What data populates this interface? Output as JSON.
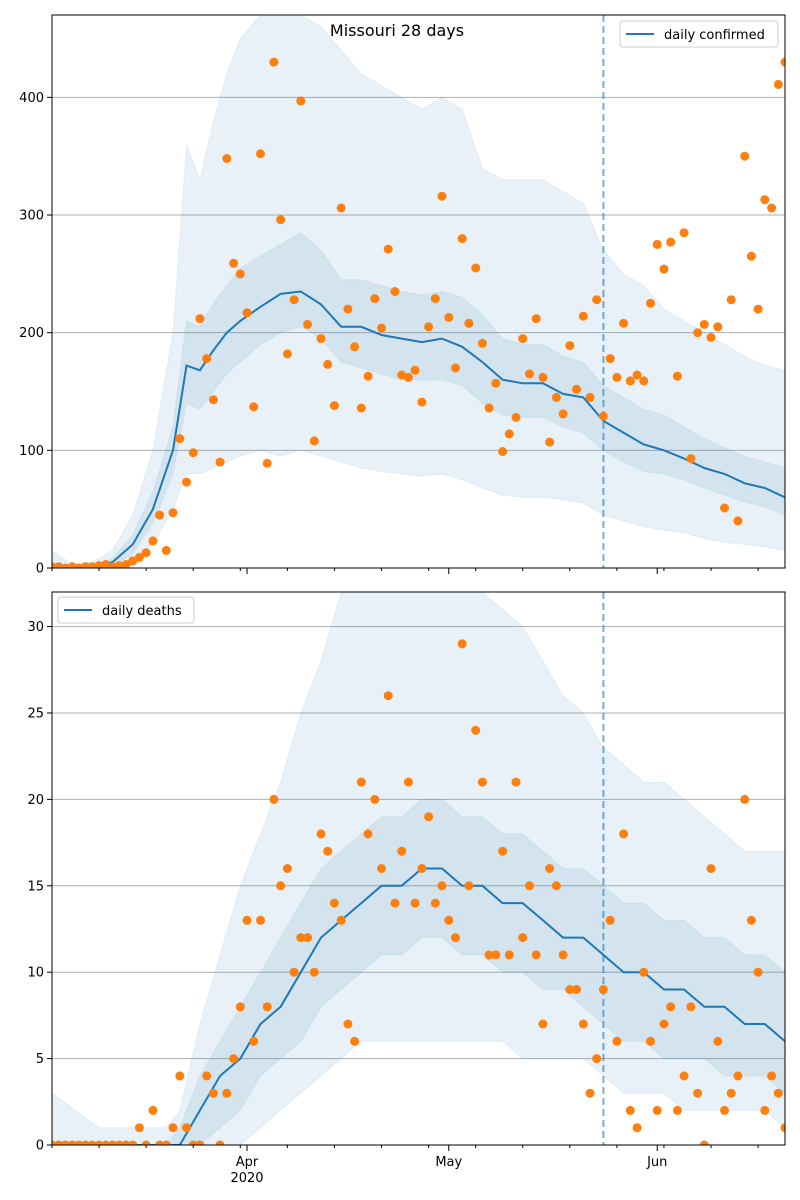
{
  "chart_data": [
    {
      "type": "line",
      "title": "Missouri 28 days",
      "legend": {
        "label": "daily confirmed",
        "placement": "top-right"
      },
      "ylim": [
        0,
        470
      ],
      "yticks": [
        0,
        100,
        200,
        300,
        400
      ],
      "grid": "horizontal",
      "prediction_start": "2020-05-24",
      "x_start": "2020-03-03",
      "x_end": "2020-06-20",
      "colors": {
        "line": "#1f77b4",
        "points": "#ff7f0e",
        "band": "#1f77b4"
      },
      "series": [
        {
          "name": "daily confirmed",
          "x": [
            "2020-03-03",
            "2020-03-06",
            "2020-03-09",
            "2020-03-12",
            "2020-03-15",
            "2020-03-18",
            "2020-03-21",
            "2020-03-23",
            "2020-03-25",
            "2020-03-27",
            "2020-03-29",
            "2020-03-31",
            "2020-04-03",
            "2020-04-06",
            "2020-04-09",
            "2020-04-12",
            "2020-04-15",
            "2020-04-18",
            "2020-04-21",
            "2020-04-24",
            "2020-04-27",
            "2020-04-30",
            "2020-05-03",
            "2020-05-06",
            "2020-05-09",
            "2020-05-12",
            "2020-05-15",
            "2020-05-18",
            "2020-05-21",
            "2020-05-24",
            "2020-05-27",
            "2020-05-30",
            "2020-06-02",
            "2020-06-05",
            "2020-06-08",
            "2020-06-11",
            "2020-06-14",
            "2020-06-17",
            "2020-06-20"
          ],
          "values": [
            0,
            0,
            1,
            5,
            20,
            50,
            100,
            172,
            168,
            185,
            200,
            210,
            222,
            233,
            235,
            224,
            205,
            205,
            198,
            195,
            192,
            195,
            188,
            175,
            160,
            157,
            157,
            148,
            145,
            125,
            115,
            105,
            100,
            93,
            85,
            80,
            72,
            68,
            60
          ],
          "lower_inner": [
            0,
            0,
            0,
            2,
            12,
            38,
            80,
            140,
            135,
            150,
            165,
            175,
            190,
            200,
            205,
            195,
            175,
            170,
            165,
            160,
            160,
            160,
            155,
            140,
            130,
            128,
            128,
            120,
            115,
            100,
            90,
            82,
            80,
            75,
            68,
            62,
            56,
            52,
            45
          ],
          "upper_inner": [
            0,
            1,
            2,
            8,
            28,
            65,
            120,
            210,
            205,
            225,
            240,
            255,
            265,
            275,
            285,
            270,
            245,
            245,
            240,
            235,
            232,
            235,
            230,
            215,
            195,
            190,
            190,
            180,
            175,
            155,
            145,
            135,
            130,
            120,
            110,
            102,
            95,
            90,
            85
          ],
          "lower_outer": [
            0,
            0,
            0,
            0,
            5,
            20,
            50,
            80,
            80,
            85,
            90,
            95,
            100,
            95,
            100,
            95,
            90,
            85,
            82,
            80,
            78,
            80,
            75,
            68,
            62,
            60,
            60,
            58,
            55,
            45,
            40,
            35,
            32,
            30,
            25,
            22,
            20,
            18,
            15
          ],
          "upper_outer": [
            15,
            3,
            5,
            15,
            45,
            100,
            200,
            360,
            330,
            380,
            420,
            450,
            470,
            470,
            470,
            460,
            440,
            420,
            410,
            400,
            390,
            400,
            390,
            340,
            330,
            330,
            330,
            320,
            310,
            270,
            250,
            240,
            220,
            210,
            200,
            190,
            180,
            172,
            168
          ]
        }
      ],
      "observed": {
        "x": [
          "2020-03-03",
          "2020-03-04",
          "2020-03-05",
          "2020-03-06",
          "2020-03-07",
          "2020-03-08",
          "2020-03-09",
          "2020-03-10",
          "2020-03-11",
          "2020-03-12",
          "2020-03-13",
          "2020-03-14",
          "2020-03-15",
          "2020-03-16",
          "2020-03-17",
          "2020-03-18",
          "2020-03-19",
          "2020-03-20",
          "2020-03-21",
          "2020-03-22",
          "2020-03-23",
          "2020-03-24",
          "2020-03-25",
          "2020-03-26",
          "2020-03-27",
          "2020-03-28",
          "2020-03-29",
          "2020-03-30",
          "2020-03-31",
          "2020-04-01",
          "2020-04-02",
          "2020-04-03",
          "2020-04-04",
          "2020-04-05",
          "2020-04-06",
          "2020-04-07",
          "2020-04-08",
          "2020-04-09",
          "2020-04-10",
          "2020-04-11",
          "2020-04-12",
          "2020-04-13",
          "2020-04-14",
          "2020-04-15",
          "2020-04-16",
          "2020-04-17",
          "2020-04-18",
          "2020-04-19",
          "2020-04-20",
          "2020-04-21",
          "2020-04-22",
          "2020-04-23",
          "2020-04-24",
          "2020-04-25",
          "2020-04-26",
          "2020-04-27",
          "2020-04-28",
          "2020-04-29",
          "2020-04-30",
          "2020-05-01",
          "2020-05-02",
          "2020-05-03",
          "2020-05-04",
          "2020-05-05",
          "2020-05-06",
          "2020-05-07",
          "2020-05-08",
          "2020-05-09",
          "2020-05-10",
          "2020-05-11",
          "2020-05-12",
          "2020-05-13",
          "2020-05-14",
          "2020-05-15",
          "2020-05-16",
          "2020-05-17",
          "2020-05-18",
          "2020-05-19",
          "2020-05-20",
          "2020-05-21",
          "2020-05-22",
          "2020-05-23",
          "2020-05-24",
          "2020-05-25",
          "2020-05-26",
          "2020-05-27",
          "2020-05-28",
          "2020-05-29",
          "2020-05-30",
          "2020-05-31",
          "2020-06-01",
          "2020-06-02",
          "2020-06-03",
          "2020-06-04",
          "2020-06-05",
          "2020-06-06",
          "2020-06-07",
          "2020-06-08",
          "2020-06-09",
          "2020-06-10",
          "2020-06-11",
          "2020-06-12",
          "2020-06-13",
          "2020-06-14",
          "2020-06-15",
          "2020-06-16",
          "2020-06-17",
          "2020-06-18",
          "2020-06-19",
          "2020-06-20"
        ],
        "values": [
          1,
          1,
          0,
          1,
          0,
          1,
          1,
          2,
          3,
          1,
          2,
          3,
          6,
          9,
          13,
          23,
          45,
          15,
          47,
          110,
          73,
          98,
          212,
          178,
          143,
          90,
          348,
          259,
          250,
          217,
          137,
          352,
          89,
          430,
          296,
          182,
          228,
          397,
          207,
          108,
          195,
          173,
          138,
          306,
          220,
          188,
          136,
          163,
          229,
          204,
          271,
          235,
          164,
          162,
          168,
          141,
          205,
          229,
          316,
          213,
          170,
          280,
          208,
          255,
          191,
          136,
          157,
          99,
          114,
          128,
          195,
          165,
          212,
          162,
          107,
          145,
          131,
          189,
          152,
          214,
          145,
          228,
          129,
          178,
          162,
          208,
          159,
          164,
          159,
          225,
          275,
          254,
          277,
          163,
          285,
          93,
          200,
          207,
          196,
          205,
          51,
          228,
          40,
          350,
          265,
          220,
          313,
          306,
          411,
          430
        ]
      }
    },
    {
      "type": "line",
      "title": "",
      "legend": {
        "label": "daily deaths",
        "placement": "top-left"
      },
      "ylim": [
        0,
        32
      ],
      "yticks": [
        0,
        5,
        10,
        15,
        20,
        25,
        30
      ],
      "xticks": [
        {
          "date": "2020-04-01",
          "label": "Apr",
          "sublabel": "2020"
        },
        {
          "date": "2020-05-01",
          "label": "May",
          "sublabel": ""
        },
        {
          "date": "2020-06-01",
          "label": "Jun",
          "sublabel": ""
        }
      ],
      "grid": "horizontal",
      "prediction_start": "2020-05-24",
      "series": [
        {
          "name": "daily deaths",
          "x": [
            "2020-03-03",
            "2020-03-10",
            "2020-03-15",
            "2020-03-20",
            "2020-03-22",
            "2020-03-25",
            "2020-03-28",
            "2020-03-31",
            "2020-04-03",
            "2020-04-06",
            "2020-04-09",
            "2020-04-12",
            "2020-04-15",
            "2020-04-18",
            "2020-04-21",
            "2020-04-24",
            "2020-04-27",
            "2020-04-30",
            "2020-05-03",
            "2020-05-06",
            "2020-05-09",
            "2020-05-12",
            "2020-05-15",
            "2020-05-18",
            "2020-05-21",
            "2020-05-24",
            "2020-05-27",
            "2020-05-30",
            "2020-06-02",
            "2020-06-05",
            "2020-06-08",
            "2020-06-11",
            "2020-06-14",
            "2020-06-17",
            "2020-06-20"
          ],
          "values": [
            0,
            0,
            0,
            0,
            0,
            2,
            4,
            5,
            7,
            8,
            10,
            12,
            13,
            14,
            15,
            15,
            16,
            16,
            15,
            15,
            14,
            14,
            13,
            12,
            12,
            11,
            10,
            10,
            9,
            9,
            8,
            8,
            7,
            7,
            6
          ],
          "lower_inner": [
            0,
            0,
            0,
            0,
            0,
            0,
            1,
            2,
            4,
            5,
            6,
            8,
            9,
            10,
            11,
            11,
            12,
            12,
            11,
            11,
            10,
            10,
            9,
            9,
            8,
            7,
            6,
            6,
            5,
            5,
            5,
            4,
            4,
            4,
            3
          ],
          "upper_inner": [
            0,
            0,
            0,
            0,
            1,
            4,
            6,
            8,
            10,
            12,
            14,
            16,
            17,
            18,
            19,
            19,
            20,
            20,
            19,
            19,
            18,
            18,
            17,
            16,
            16,
            15,
            14,
            14,
            13,
            13,
            12,
            12,
            11,
            11,
            10
          ],
          "lower_outer": [
            0,
            0,
            0,
            0,
            0,
            0,
            0,
            0,
            1,
            2,
            3,
            4,
            5,
            6,
            6,
            6,
            6,
            6,
            6,
            6,
            6,
            5,
            5,
            5,
            5,
            4,
            3,
            3,
            3,
            2,
            2,
            2,
            2,
            2,
            1
          ],
          "upper_outer": [
            3,
            1,
            1,
            1,
            2,
            7,
            11,
            15,
            18,
            21,
            25,
            28,
            32,
            32,
            32,
            32,
            32,
            32,
            32,
            32,
            31,
            30,
            28,
            26,
            25,
            23,
            22,
            21,
            21,
            20,
            19,
            18,
            17,
            17,
            17
          ]
        }
      ],
      "observed": {
        "x": [
          "2020-03-03",
          "2020-03-04",
          "2020-03-05",
          "2020-03-06",
          "2020-03-07",
          "2020-03-08",
          "2020-03-09",
          "2020-03-10",
          "2020-03-11",
          "2020-03-12",
          "2020-03-13",
          "2020-03-14",
          "2020-03-15",
          "2020-03-16",
          "2020-03-17",
          "2020-03-18",
          "2020-03-19",
          "2020-03-20",
          "2020-03-21",
          "2020-03-22",
          "2020-03-23",
          "2020-03-24",
          "2020-03-25",
          "2020-03-26",
          "2020-03-27",
          "2020-03-28",
          "2020-03-29",
          "2020-03-30",
          "2020-03-31",
          "2020-04-01",
          "2020-04-02",
          "2020-04-03",
          "2020-04-04",
          "2020-04-05",
          "2020-04-06",
          "2020-04-07",
          "2020-04-08",
          "2020-04-09",
          "2020-04-10",
          "2020-04-11",
          "2020-04-12",
          "2020-04-13",
          "2020-04-14",
          "2020-04-15",
          "2020-04-16",
          "2020-04-17",
          "2020-04-18",
          "2020-04-19",
          "2020-04-20",
          "2020-04-21",
          "2020-04-22",
          "2020-04-23",
          "2020-04-24",
          "2020-04-25",
          "2020-04-26",
          "2020-04-27",
          "2020-04-28",
          "2020-04-29",
          "2020-04-30",
          "2020-05-01",
          "2020-05-02",
          "2020-05-03",
          "2020-05-04",
          "2020-05-05",
          "2020-05-06",
          "2020-05-07",
          "2020-05-08",
          "2020-05-09",
          "2020-05-10",
          "2020-05-11",
          "2020-05-12",
          "2020-05-13",
          "2020-05-14",
          "2020-05-15",
          "2020-05-16",
          "2020-05-17",
          "2020-05-18",
          "2020-05-19",
          "2020-05-20",
          "2020-05-21",
          "2020-05-22",
          "2020-05-23",
          "2020-05-24",
          "2020-05-25",
          "2020-05-26",
          "2020-05-27",
          "2020-05-28",
          "2020-05-29",
          "2020-05-30",
          "2020-05-31",
          "2020-06-01",
          "2020-06-02",
          "2020-06-03",
          "2020-06-04",
          "2020-06-05",
          "2020-06-06",
          "2020-06-07",
          "2020-06-08",
          "2020-06-09",
          "2020-06-10",
          "2020-06-11",
          "2020-06-12",
          "2020-06-13",
          "2020-06-14",
          "2020-06-15",
          "2020-06-16",
          "2020-06-17",
          "2020-06-18",
          "2020-06-19",
          "2020-06-20"
        ],
        "values": [
          0,
          0,
          0,
          0,
          0,
          0,
          0,
          0,
          0,
          0,
          0,
          0,
          0,
          1,
          0,
          2,
          0,
          0,
          1,
          4,
          1,
          0,
          0,
          4,
          3,
          0,
          3,
          5,
          8,
          13,
          6,
          13,
          8,
          20,
          15,
          16,
          10,
          12,
          12,
          10,
          18,
          17,
          14,
          13,
          7,
          6,
          21,
          18,
          20,
          16,
          26,
          14,
          17,
          21,
          14,
          16,
          19,
          14,
          15,
          13,
          12,
          29,
          15,
          24,
          21,
          11,
          11,
          17,
          11,
          21,
          12,
          15,
          11,
          7,
          16,
          15,
          11,
          9,
          9,
          7,
          3,
          5,
          9,
          13,
          6,
          18,
          2,
          1,
          10,
          6,
          2,
          7,
          8,
          2,
          4,
          8,
          3,
          0,
          16,
          6,
          2,
          3,
          4,
          20,
          13,
          10,
          2,
          4,
          3,
          1
        ]
      }
    }
  ]
}
